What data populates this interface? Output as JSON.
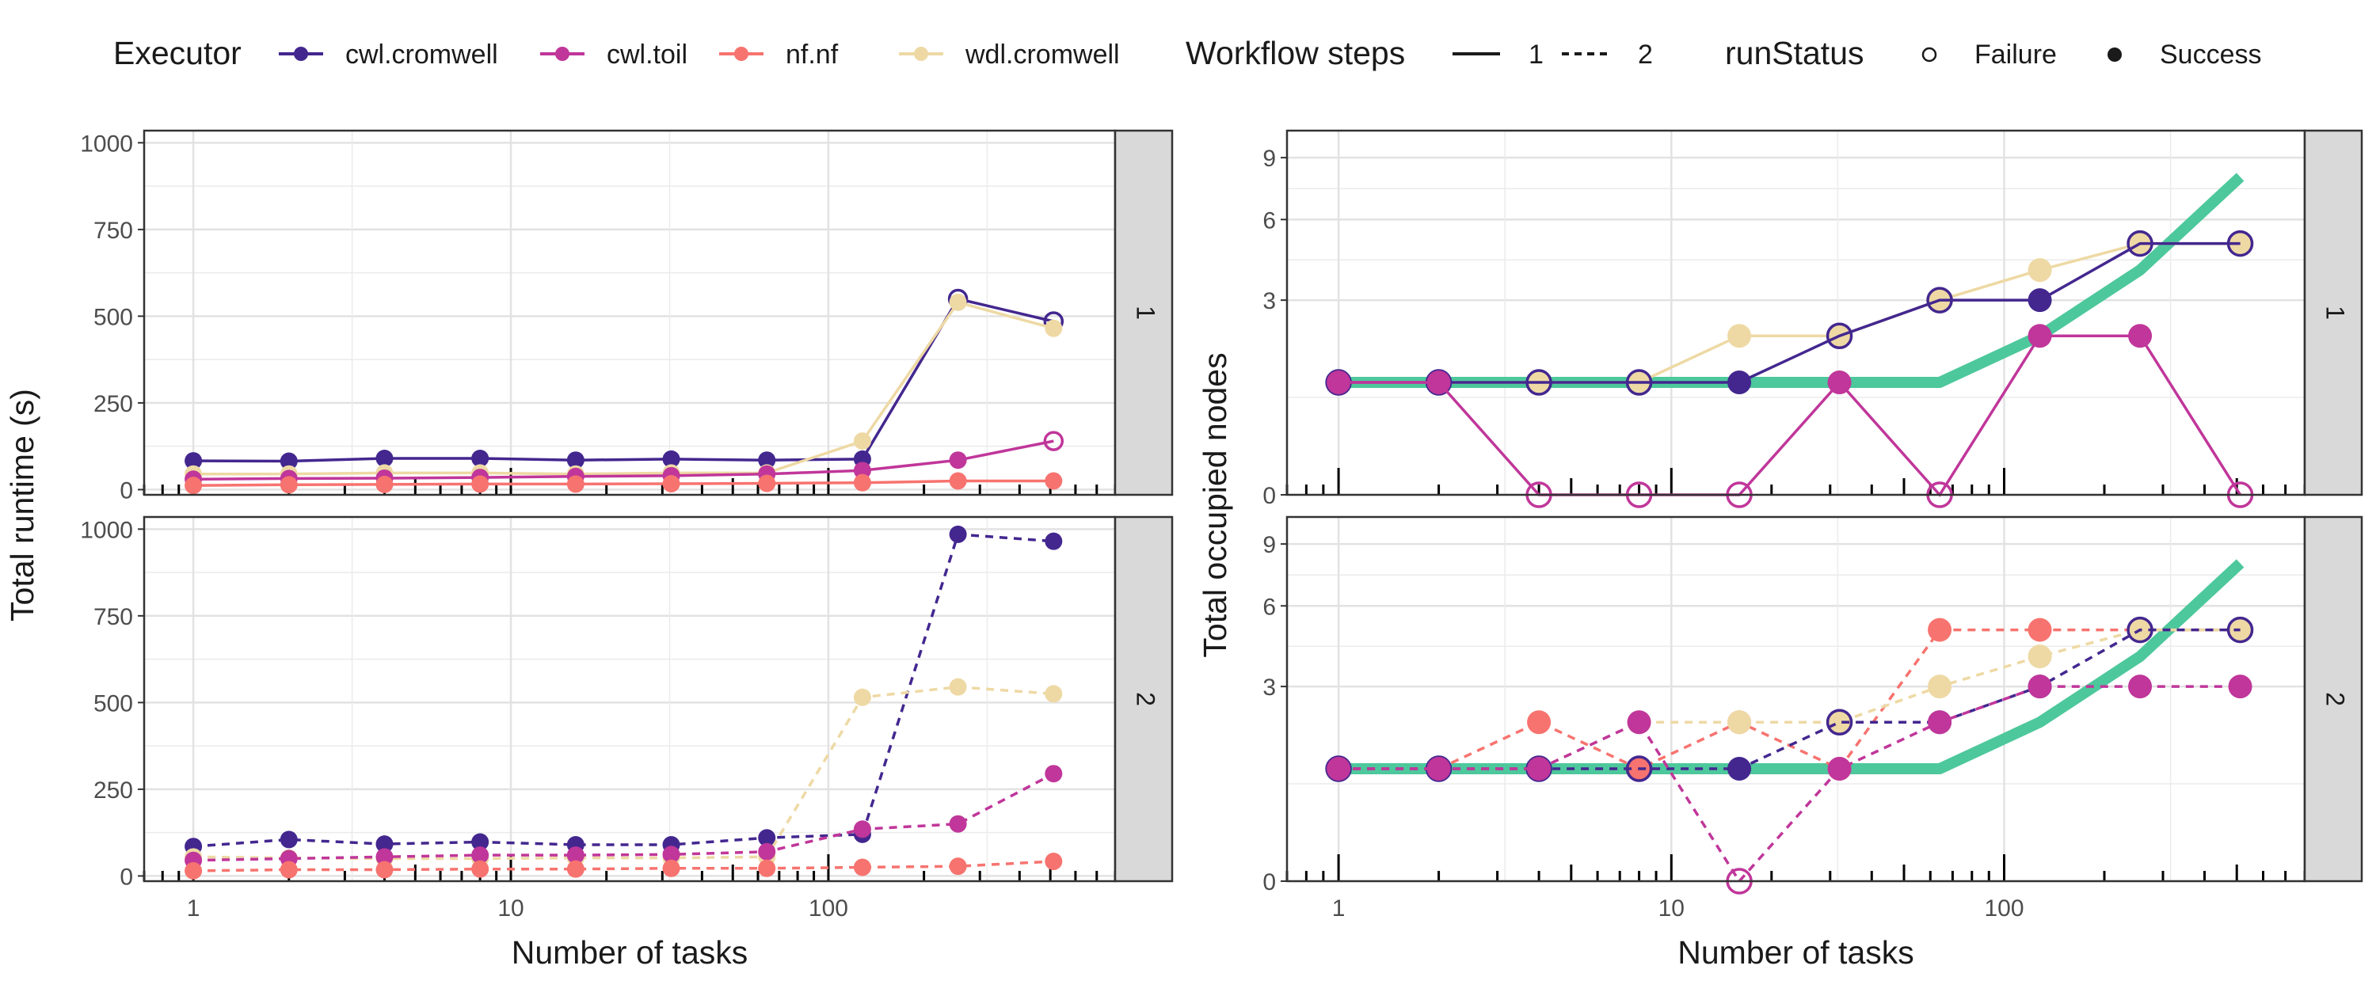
{
  "legend": {
    "executor_title": "Executor",
    "executors": [
      {
        "name": "cwl.cromwell",
        "color": "#43278f"
      },
      {
        "name": "cwl.toil",
        "color": "#c0369a"
      },
      {
        "name": "nf.nf",
        "color": "#f7736f"
      },
      {
        "name": "wdl.cromwell",
        "color": "#eed9a4"
      }
    ],
    "steps_title": "Workflow steps",
    "steps": [
      {
        "label": "1",
        "linetype": "solid"
      },
      {
        "label": "2",
        "linetype": "dashed"
      }
    ],
    "status_title": "runStatus",
    "statuses": [
      {
        "label": "Failure",
        "marker": "hollow"
      },
      {
        "label": "Success",
        "marker": "filled"
      }
    ]
  },
  "chart_data": [
    {
      "type": "line",
      "id": "runtime",
      "xlabel": "Number of tasks",
      "ylabel": "Total runtime (s)",
      "x_scale": "log10",
      "xlim": [
        0.7,
        800
      ],
      "x_ticks": [
        "1",
        "10",
        "100"
      ],
      "ylim": [
        -15,
        1035
      ],
      "y_ticks": [
        "0",
        "250",
        "500",
        "750",
        "1000"
      ],
      "grid": true,
      "x": [
        1,
        2,
        4,
        8,
        16,
        32,
        64,
        128,
        256,
        512
      ],
      "facets": [
        {
          "strip": "1",
          "series": [
            {
              "name": "cwl.cromwell",
              "steps": "1",
              "values": [
                83,
                82,
                90,
                90,
                85,
                88,
                85,
                88,
                550,
                485
              ],
              "status": [
                "S",
                "S",
                "S",
                "S",
                "S",
                "S",
                "S",
                "S",
                "F",
                "F"
              ]
            },
            {
              "name": "wdl.cromwell",
              "steps": "1",
              "values": [
                45,
                45,
                48,
                48,
                45,
                48,
                48,
                140,
                540,
                465
              ],
              "status": [
                "S",
                "S",
                "S",
                "S",
                "S",
                "S",
                "S",
                "S",
                "S",
                "S"
              ]
            },
            {
              "name": "cwl.toil",
              "steps": "1",
              "values": [
                30,
                32,
                33,
                35,
                38,
                40,
                45,
                55,
                85,
                140
              ],
              "status": [
                "S",
                "S",
                "S",
                "S",
                "S",
                "S",
                "S",
                "S",
                "S",
                "F"
              ]
            },
            {
              "name": "nf.nf",
              "steps": "1",
              "values": [
                12,
                14,
                15,
                16,
                16,
                17,
                18,
                20,
                25,
                25
              ],
              "status": [
                "S",
                "S",
                "S",
                "S",
                "S",
                "S",
                "S",
                "S",
                "S",
                "S"
              ]
            }
          ]
        },
        {
          "strip": "2",
          "series": [
            {
              "name": "cwl.cromwell",
              "steps": "2",
              "values": [
                85,
                105,
                92,
                98,
                90,
                90,
                110,
                120,
                985,
                965
              ],
              "status": [
                "S",
                "S",
                "S",
                "S",
                "S",
                "S",
                "S",
                "S",
                "S",
                "S"
              ]
            },
            {
              "name": "wdl.cromwell",
              "steps": "2",
              "values": [
                55,
                52,
                50,
                50,
                52,
                52,
                55,
                515,
                545,
                525
              ],
              "status": [
                "S",
                "S",
                "S",
                "S",
                "S",
                "S",
                "S",
                "S",
                "S",
                "S"
              ]
            },
            {
              "name": "cwl.toil",
              "steps": "2",
              "values": [
                45,
                50,
                55,
                60,
                60,
                62,
                70,
                135,
                150,
                295
              ],
              "status": [
                "S",
                "S",
                "S",
                "S",
                "S",
                "S",
                "S",
                "S",
                "S",
                "S"
              ]
            },
            {
              "name": "nf.nf",
              "steps": "2",
              "values": [
                15,
                18,
                18,
                20,
                20,
                22,
                22,
                25,
                28,
                42
              ],
              "status": [
                "S",
                "S",
                "S",
                "S",
                "S",
                "S",
                "S",
                "S",
                "S",
                "S"
              ]
            }
          ]
        }
      ]
    },
    {
      "type": "line",
      "id": "nodes",
      "xlabel": "Number of tasks",
      "ylabel": "Total occupied nodes",
      "x_scale": "log10",
      "y_scale": "sqrt",
      "xlim": [
        0.7,
        800
      ],
      "x_ticks": [
        "1",
        "10",
        "100"
      ],
      "ylim": [
        0,
        10.5
      ],
      "y_ticks": [
        "0",
        "3",
        "6",
        "9"
      ],
      "y_tick_values": [
        0,
        3,
        6,
        9
      ],
      "grid": true,
      "x": [
        1,
        2,
        4,
        8,
        16,
        32,
        64,
        128,
        256,
        512
      ],
      "reference": {
        "color": "#4dc89c",
        "x": [
          1,
          2,
          4,
          8,
          16,
          32,
          64,
          128,
          256,
          512
        ],
        "values": [
          1,
          1,
          1,
          1,
          1,
          1,
          1,
          2,
          4,
          8
        ]
      },
      "facets": [
        {
          "strip": "1",
          "series": [
            {
              "name": "wdl.cromwell",
              "steps": "1",
              "values": [
                1,
                1,
                1,
                1,
                2,
                2,
                3,
                4,
                5,
                5
              ],
              "status": [
                "S",
                "S",
                "S",
                "S",
                "S",
                "S",
                "S",
                "S",
                "S",
                "S"
              ]
            },
            {
              "name": "cwl.cromwell",
              "steps": "1",
              "values": [
                1,
                1,
                1,
                1,
                1,
                2,
                3,
                3,
                5,
                5
              ],
              "status": [
                "F",
                "F",
                "F",
                "F",
                "S",
                "F",
                "F",
                "S",
                "F",
                "F"
              ]
            },
            {
              "name": "cwl.toil",
              "steps": "1",
              "values": [
                1,
                1,
                0,
                0,
                0,
                1,
                0,
                2,
                2,
                0
              ],
              "status": [
                "S",
                "S",
                "F",
                "F",
                "F",
                "S",
                "F",
                "S",
                "S",
                "F"
              ]
            }
          ]
        },
        {
          "strip": "2",
          "series": [
            {
              "name": "nf.nf",
              "steps": "2",
              "values": [
                1,
                1,
                2,
                1,
                2,
                1,
                5,
                5,
                5,
                5
              ],
              "status": [
                "S",
                "S",
                "S",
                "S",
                "S",
                "S",
                "S",
                "S",
                "S",
                "S"
              ]
            },
            {
              "name": "wdl.cromwell",
              "steps": "2",
              "values": [
                1,
                1,
                1,
                2,
                2,
                2,
                3,
                4,
                5,
                5
              ],
              "status": [
                "S",
                "S",
                "S",
                "S",
                "S",
                "S",
                "S",
                "S",
                "S",
                "S"
              ]
            },
            {
              "name": "cwl.cromwell",
              "steps": "2",
              "values": [
                1,
                1,
                1,
                1,
                1,
                2,
                2,
                3,
                5,
                5
              ],
              "status": [
                "F",
                "F",
                "F",
                "F",
                "S",
                "F",
                "S",
                "S",
                "F",
                "F"
              ]
            },
            {
              "name": "cwl.toil",
              "steps": "2",
              "values": [
                1,
                1,
                1,
                2,
                0,
                1,
                2,
                3,
                3,
                3
              ],
              "status": [
                "S",
                "S",
                "S",
                "S",
                "F",
                "S",
                "S",
                "S",
                "S",
                "S"
              ]
            }
          ]
        }
      ]
    }
  ]
}
